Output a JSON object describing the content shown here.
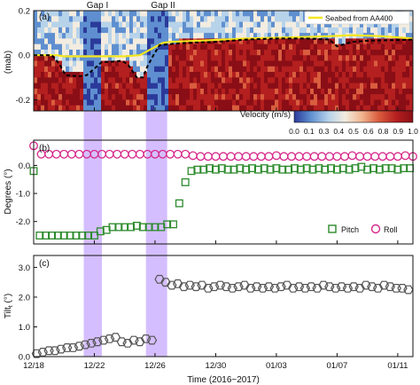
{
  "chart_data": [
    {
      "type": "heatmap",
      "panel_label": "(a)",
      "ylabel": "(mab)",
      "ylim": [
        -0.25,
        0.2
      ],
      "yticks": [
        "0.2",
        "0.0",
        "-0.2"
      ],
      "ytick_values": [
        0.2,
        0.0,
        -0.2
      ],
      "gap_labels": [
        "Gap I",
        "Gap II"
      ],
      "legend": [
        "Seabed from AA400"
      ],
      "colorbar": {
        "label": "Velocity (m/s)",
        "ticks": [
          "0.0",
          "0.1",
          "0.3",
          "0.4",
          "0.5",
          "0.6",
          "0.8",
          "0.9",
          "1.0"
        ],
        "range": [
          0.0,
          1.0
        ],
        "colors": [
          "#2b3a9a",
          "#5f8fd0",
          "#b7d3ea",
          "#f3ece0",
          "#f1b48f",
          "#d95d3e",
          "#b41f1f",
          "#8a0e16"
        ]
      },
      "seabed_series": {
        "name": "Seabed from AA400",
        "color": "#f5e61e",
        "x": [
          0,
          1.5,
          2.0,
          3.0,
          4.0,
          5.0,
          6.0,
          7.0,
          8.5,
          9.0,
          11.0,
          14.0,
          17.0,
          19.5,
          21.0,
          23.0,
          25.0
        ],
        "y": [
          0.0,
          0.0,
          -0.005,
          -0.005,
          -0.005,
          -0.005,
          -0.005,
          0.0,
          0.055,
          0.06,
          0.065,
          0.075,
          0.08,
          0.085,
          0.09,
          0.085,
          0.075
        ]
      },
      "dashed_series": {
        "color": "#000000",
        "x": [
          0,
          1.2,
          1.7,
          2.1,
          3.0,
          3.5,
          4.0,
          4.5,
          5.0,
          5.8,
          6.2,
          6.8,
          7.2,
          7.5,
          7.9,
          8.3,
          9.0,
          10.0,
          12.0,
          14.0,
          16.0,
          18.0,
          19.5,
          20.0,
          20.5,
          21.0,
          22.0,
          24.0,
          25.0
        ],
        "y": [
          0.0,
          0.0,
          -0.04,
          -0.09,
          -0.095,
          -0.09,
          -0.06,
          -0.03,
          -0.03,
          -0.025,
          -0.04,
          -0.1,
          -0.1,
          -0.05,
          0.0,
          0.045,
          0.05,
          0.055,
          0.06,
          0.07,
          0.075,
          0.075,
          0.07,
          0.04,
          0.05,
          0.06,
          0.065,
          0.068,
          0.07
        ]
      }
    },
    {
      "type": "scatter",
      "panel_label": "(b)",
      "ylabel": "Degrees (°)",
      "ylim": [
        -2.8,
        0.9
      ],
      "yticks": [
        "0.0",
        "-1.0",
        "-2.0"
      ],
      "ytick_values": [
        0.0,
        -1.0,
        -2.0
      ],
      "series": [
        {
          "name": "Pitch",
          "color": "#2b8a2b",
          "marker": "square",
          "x": [
            0,
            0.4,
            0.8,
            1.2,
            1.6,
            2.0,
            2.4,
            2.8,
            3.2,
            3.6,
            4.0,
            4.4,
            4.8,
            5.2,
            5.6,
            6.0,
            6.4,
            6.8,
            7.2,
            7.6,
            8.0,
            8.4,
            8.8,
            9.2,
            9.6,
            10.0,
            10.4,
            10.8,
            11.2,
            11.6,
            12.0,
            12.4,
            12.8,
            13.2,
            13.6,
            14.0,
            14.4,
            14.8,
            15.2,
            15.6,
            16.0,
            16.4,
            16.8,
            17.2,
            17.6,
            18.0,
            18.4,
            18.8,
            19.2,
            19.6,
            20.0,
            20.4,
            20.8,
            21.2,
            21.6,
            22.0,
            22.4,
            22.8,
            23.2,
            23.6,
            24.0,
            24.4,
            24.8
          ],
          "y": [
            -0.2,
            -2.5,
            -2.5,
            -2.5,
            -2.5,
            -2.5,
            -2.5,
            -2.5,
            -2.5,
            -2.5,
            -2.5,
            -2.35,
            -2.3,
            -2.2,
            -2.2,
            -2.2,
            -2.2,
            -2.15,
            -2.2,
            -2.2,
            -2.2,
            -2.2,
            -2.1,
            -2.1,
            -1.35,
            -0.6,
            -0.2,
            -0.15,
            -0.15,
            -0.1,
            -0.15,
            -0.1,
            -0.15,
            -0.15,
            -0.1,
            -0.15,
            -0.1,
            -0.15,
            -0.1,
            -0.15,
            -0.1,
            -0.15,
            -0.15,
            -0.1,
            -0.15,
            -0.1,
            -0.15,
            -0.1,
            -0.15,
            -0.1,
            -0.15,
            -0.1,
            -0.15,
            -0.1,
            -0.05,
            -0.15,
            -0.1,
            -0.15,
            -0.1,
            -0.1,
            -0.15,
            -0.1,
            -0.1
          ]
        },
        {
          "name": "Roll",
          "color": "#d6288a",
          "marker": "circle",
          "x": [
            0,
            0.5,
            1.0,
            1.5,
            2.0,
            2.5,
            3.0,
            3.5,
            4.0,
            4.5,
            5.0,
            5.5,
            6.0,
            6.5,
            7.0,
            7.5,
            8.0,
            8.5,
            9.0,
            9.5,
            10.0,
            10.5,
            11.0,
            11.5,
            12.0,
            12.5,
            13.0,
            13.5,
            14.0,
            14.5,
            15.0,
            15.5,
            16.0,
            16.5,
            17.0,
            17.5,
            18.0,
            18.5,
            19.0,
            19.5,
            20.0,
            20.5,
            21.0,
            21.5,
            22.0,
            22.5,
            23.0,
            23.5,
            24.0,
            24.5,
            25.0
          ],
          "y": [
            0.7,
            0.4,
            0.4,
            0.4,
            0.4,
            0.4,
            0.4,
            0.4,
            0.4,
            0.4,
            0.4,
            0.4,
            0.4,
            0.4,
            0.4,
            0.4,
            0.4,
            0.4,
            0.4,
            0.4,
            0.4,
            0.35,
            0.32,
            0.32,
            0.32,
            0.32,
            0.32,
            0.32,
            0.32,
            0.32,
            0.32,
            0.32,
            0.35,
            0.32,
            0.32,
            0.32,
            0.32,
            0.32,
            0.32,
            0.32,
            0.32,
            0.32,
            0.35,
            0.32,
            0.32,
            0.32,
            0.32,
            0.32,
            0.32,
            0.35,
            0.32
          ]
        }
      ]
    },
    {
      "type": "scatter",
      "panel_label": "(c)",
      "ylabel": "Tilt",
      "ylabel_sub": "t",
      "ylabel_unit": " (°)",
      "ylim": [
        0.0,
        3.4
      ],
      "yticks": [
        "0.0",
        "1.0",
        "2.0",
        "3.0"
      ],
      "ytick_values": [
        0.0,
        1.0,
        2.0,
        3.0
      ],
      "xlabel": "Time (2016~2017)",
      "xlim": [
        0,
        25
      ],
      "xticks": [
        "12/18",
        "12/22",
        "12/26",
        "12/30",
        "01/03",
        "01/07",
        "01/11"
      ],
      "xtick_values": [
        0,
        4,
        8,
        12,
        16,
        20,
        24
      ],
      "series": [
        {
          "name": "Tilt",
          "color": "#555555",
          "marker": "hexagon",
          "x": [
            0.2,
            0.6,
            1.0,
            1.4,
            1.8,
            2.2,
            2.6,
            3.0,
            3.4,
            3.8,
            4.2,
            4.6,
            5.0,
            5.4,
            5.8,
            6.2,
            6.6,
            7.0,
            7.4,
            7.8,
            8.3,
            8.7,
            9.1,
            9.5,
            9.9,
            10.3,
            10.7,
            11.1,
            11.5,
            11.9,
            12.3,
            12.7,
            13.1,
            13.5,
            13.9,
            14.3,
            14.7,
            15.1,
            15.5,
            15.9,
            16.3,
            16.7,
            17.1,
            17.5,
            17.9,
            18.3,
            18.7,
            19.1,
            19.5,
            19.9,
            20.3,
            20.7,
            21.1,
            21.5,
            21.9,
            22.3,
            22.7,
            23.1,
            23.5,
            23.9,
            24.3,
            24.7
          ],
          "y": [
            0.1,
            0.15,
            0.2,
            0.2,
            0.25,
            0.3,
            0.3,
            0.35,
            0.4,
            0.45,
            0.5,
            0.55,
            0.6,
            0.65,
            0.5,
            0.45,
            0.55,
            0.5,
            0.6,
            0.55,
            2.6,
            2.5,
            2.4,
            2.45,
            2.35,
            2.4,
            2.35,
            2.4,
            2.3,
            2.35,
            2.4,
            2.35,
            2.3,
            2.35,
            2.4,
            2.3,
            2.35,
            2.3,
            2.35,
            2.3,
            2.35,
            2.4,
            2.3,
            2.35,
            2.3,
            2.35,
            2.3,
            2.4,
            2.35,
            2.3,
            2.35,
            2.3,
            2.35,
            2.3,
            2.4,
            2.35,
            2.3,
            2.4,
            2.35,
            2.3,
            2.3,
            2.25
          ]
        }
      ]
    }
  ],
  "gap_bands": [
    {
      "name": "Gap I",
      "x": [
        3.3,
        4.5
      ]
    },
    {
      "name": "Gap II",
      "x": [
        7.4,
        8.8
      ]
    }
  ],
  "colors": {
    "gap_band": "#b388ff",
    "axis": "#111111"
  }
}
